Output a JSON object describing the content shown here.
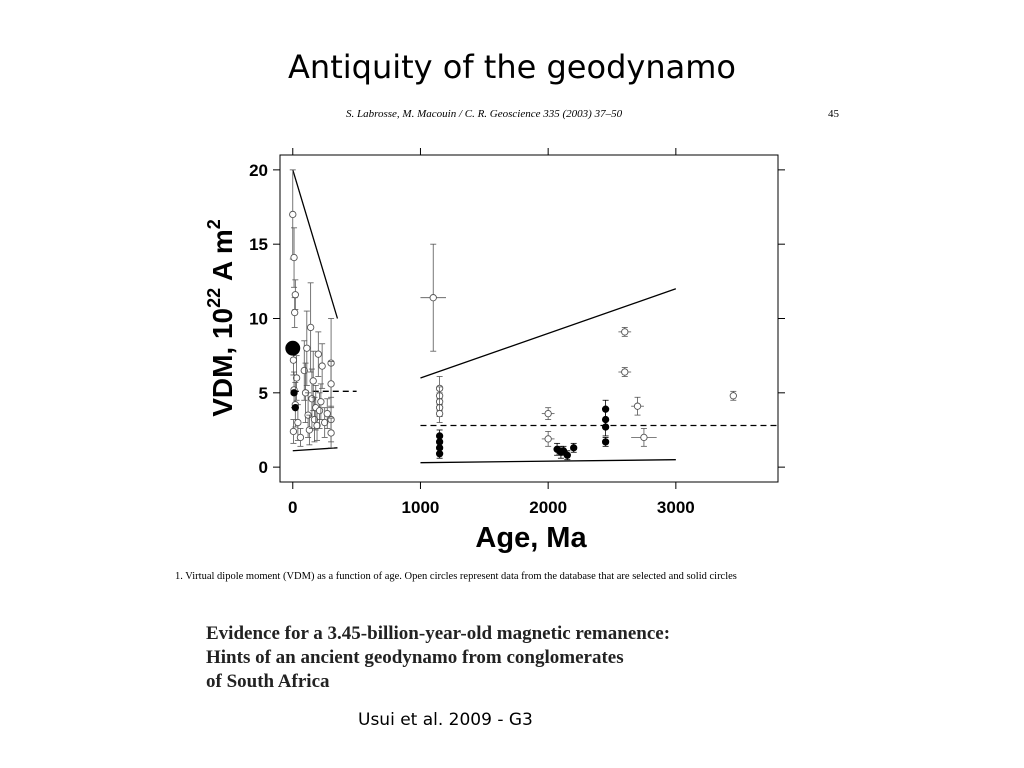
{
  "slide": {
    "title": "Antiquity of the geodynamo",
    "citation": "Usui et al. 2009  - G3"
  },
  "paper_header": {
    "cite": "S. Labrosse, M. Macouin / C. R. Geoscience 335 (2003) 37–50",
    "page": "45"
  },
  "caption": "1. Virtual dipole moment (VDM) as a function of age. Open circles represent data from the database that are selected and solid circles",
  "paper_title": {
    "line1": "Evidence for a 3.45-billion-year-old magnetic remanence:",
    "line2": "Hints of an ancient geodynamo from conglomerates",
    "line3": "of South Africa"
  },
  "chart_data": {
    "type": "scatter",
    "xlabel": "Age, Ma",
    "ylabel_main": "VDM, 10",
    "ylabel_sup": "22",
    "ylabel_unit": " A m",
    "ylabel_sup2": "2",
    "xlim": [
      -100,
      3800
    ],
    "ylim": [
      -1,
      21
    ],
    "xticks": [
      0,
      1000,
      2000,
      3000
    ],
    "yticks": [
      0,
      5,
      10,
      15,
      20
    ],
    "grid": false,
    "colors": {
      "open": "#555555",
      "solid": "#000000",
      "line": "#000000"
    },
    "open_points": [
      {
        "x": 0,
        "y": 17,
        "ex": 0,
        "ey": 3
      },
      {
        "x": 10,
        "y": 14.1,
        "ex": 0,
        "ey": 2
      },
      {
        "x": 20,
        "y": 11.6,
        "ex": 15,
        "ey": 1
      },
      {
        "x": 15,
        "y": 10.4,
        "ex": 10,
        "ey": 1
      },
      {
        "x": 5,
        "y": 7.2,
        "ex": 0,
        "ey": 1
      },
      {
        "x": 30,
        "y": 6.0,
        "ex": 0,
        "ey": 1.5
      },
      {
        "x": 10,
        "y": 5.2,
        "ex": 0,
        "ey": 1.2
      },
      {
        "x": 20,
        "y": 4.2,
        "ex": 0,
        "ey": 1.5
      },
      {
        "x": 40,
        "y": 3.0,
        "ex": 0,
        "ey": 1.2
      },
      {
        "x": 5,
        "y": 2.4,
        "ex": 0,
        "ey": 0.8
      },
      {
        "x": 60,
        "y": 2.0,
        "ex": 0,
        "ey": 0.6
      },
      {
        "x": 90,
        "y": 6.5,
        "ex": 0,
        "ey": 2
      },
      {
        "x": 100,
        "y": 5.0,
        "ex": 0,
        "ey": 2
      },
      {
        "x": 110,
        "y": 8.0,
        "ex": 0,
        "ey": 2.5
      },
      {
        "x": 120,
        "y": 3.5,
        "ex": 0,
        "ey": 1.5
      },
      {
        "x": 130,
        "y": 2.5,
        "ex": 0,
        "ey": 1
      },
      {
        "x": 140,
        "y": 9.4,
        "ex": 0,
        "ey": 3
      },
      {
        "x": 150,
        "y": 4.6,
        "ex": 0,
        "ey": 2
      },
      {
        "x": 160,
        "y": 5.8,
        "ex": 0,
        "ey": 2
      },
      {
        "x": 170,
        "y": 3.2,
        "ex": 0,
        "ey": 1.5
      },
      {
        "x": 180,
        "y": 4.0,
        "ex": 0,
        "ey": 1.5
      },
      {
        "x": 190,
        "y": 2.8,
        "ex": 0,
        "ey": 1
      },
      {
        "x": 200,
        "y": 7.6,
        "ex": 0,
        "ey": 1.5
      },
      {
        "x": 210,
        "y": 3.8,
        "ex": 0,
        "ey": 1.2
      },
      {
        "x": 220,
        "y": 4.4,
        "ex": 0,
        "ey": 1.2
      },
      {
        "x": 230,
        "y": 6.8,
        "ex": 0,
        "ey": 1.5
      },
      {
        "x": 250,
        "y": 3.0,
        "ex": 0,
        "ey": 1
      },
      {
        "x": 270,
        "y": 3.6,
        "ex": 0,
        "ey": 1
      },
      {
        "x": 300,
        "y": 7.0,
        "ex": 0,
        "ey": 3
      },
      {
        "x": 300,
        "y": 5.6,
        "ex": 0,
        "ey": 1.5
      },
      {
        "x": 300,
        "y": 3.2,
        "ex": 0,
        "ey": 1.5
      },
      {
        "x": 300,
        "y": 2.3,
        "ex": 0,
        "ey": 1
      },
      {
        "x": 1100,
        "y": 11.4,
        "ex": 100,
        "ey": 3.6
      },
      {
        "x": 1150,
        "y": 5.3,
        "ex": 0,
        "ey": 0.8
      },
      {
        "x": 1150,
        "y": 4.8,
        "ex": 0,
        "ey": 0.6
      },
      {
        "x": 1150,
        "y": 4.4,
        "ex": 0,
        "ey": 0.6
      },
      {
        "x": 1150,
        "y": 4.0,
        "ex": 0,
        "ey": 0.6
      },
      {
        "x": 1150,
        "y": 3.6,
        "ex": 0,
        "ey": 0.6
      },
      {
        "x": 2000,
        "y": 3.6,
        "ex": 50,
        "ey": 0.4
      },
      {
        "x": 2000,
        "y": 1.9,
        "ex": 50,
        "ey": 0.5
      },
      {
        "x": 2600,
        "y": 9.1,
        "ex": 50,
        "ey": 0.3
      },
      {
        "x": 2600,
        "y": 6.4,
        "ex": 50,
        "ey": 0.3
      },
      {
        "x": 2700,
        "y": 4.1,
        "ex": 50,
        "ey": 0.6
      },
      {
        "x": 2750,
        "y": 2.0,
        "ex": 100,
        "ey": 0.6
      },
      {
        "x": 3450,
        "y": 4.8,
        "ex": 0,
        "ey": 0.3
      }
    ],
    "solid_points": [
      {
        "x": 0,
        "y": 8.0,
        "ex": 0,
        "ey": 0,
        "big": true
      },
      {
        "x": 10,
        "y": 5.0,
        "ex": 0,
        "ey": 0
      },
      {
        "x": 20,
        "y": 4.0,
        "ex": 0,
        "ey": 0
      },
      {
        "x": 1150,
        "y": 2.1,
        "ex": 0,
        "ey": 0.4
      },
      {
        "x": 1150,
        "y": 1.7,
        "ex": 0,
        "ey": 0.4
      },
      {
        "x": 1150,
        "y": 1.3,
        "ex": 0,
        "ey": 0.4
      },
      {
        "x": 1150,
        "y": 0.9,
        "ex": 0,
        "ey": 0.3
      },
      {
        "x": 2070,
        "y": 1.2,
        "ex": 0,
        "ey": 0.4
      },
      {
        "x": 2100,
        "y": 1.0,
        "ex": 0,
        "ey": 0.4
      },
      {
        "x": 2120,
        "y": 1.1,
        "ex": 0,
        "ey": 0.3
      },
      {
        "x": 2150,
        "y": 0.8,
        "ex": 0,
        "ey": 0.3
      },
      {
        "x": 2200,
        "y": 1.3,
        "ex": 0,
        "ey": 0.3
      },
      {
        "x": 2450,
        "y": 3.9,
        "ex": 0,
        "ey": 0.6
      },
      {
        "x": 2450,
        "y": 3.2,
        "ex": 0,
        "ey": 0.6
      },
      {
        "x": 2450,
        "y": 2.7,
        "ex": 0,
        "ey": 0.6
      },
      {
        "x": 2450,
        "y": 1.7,
        "ex": 0,
        "ey": 0.3
      }
    ],
    "lines": [
      {
        "name": "upper-envelope-recent",
        "x": [
          0,
          350
        ],
        "y": [
          20,
          10
        ],
        "dash": false
      },
      {
        "name": "lower-envelope-recent",
        "x": [
          0,
          350
        ],
        "y": [
          1.1,
          1.3
        ],
        "dash": false
      },
      {
        "name": "mean-recent",
        "x": [
          0,
          500
        ],
        "y": [
          5.1,
          5.1
        ],
        "dash": true
      },
      {
        "name": "upper-envelope-precambrian",
        "x": [
          1000,
          3000
        ],
        "y": [
          6.0,
          12.0
        ],
        "dash": false
      },
      {
        "name": "lower-envelope-precambrian",
        "x": [
          1000,
          3000
        ],
        "y": [
          0.3,
          0.5
        ],
        "dash": false
      },
      {
        "name": "mean-precambrian",
        "x": [
          1000,
          3800
        ],
        "y": [
          2.8,
          2.8
        ],
        "dash": true
      }
    ]
  }
}
